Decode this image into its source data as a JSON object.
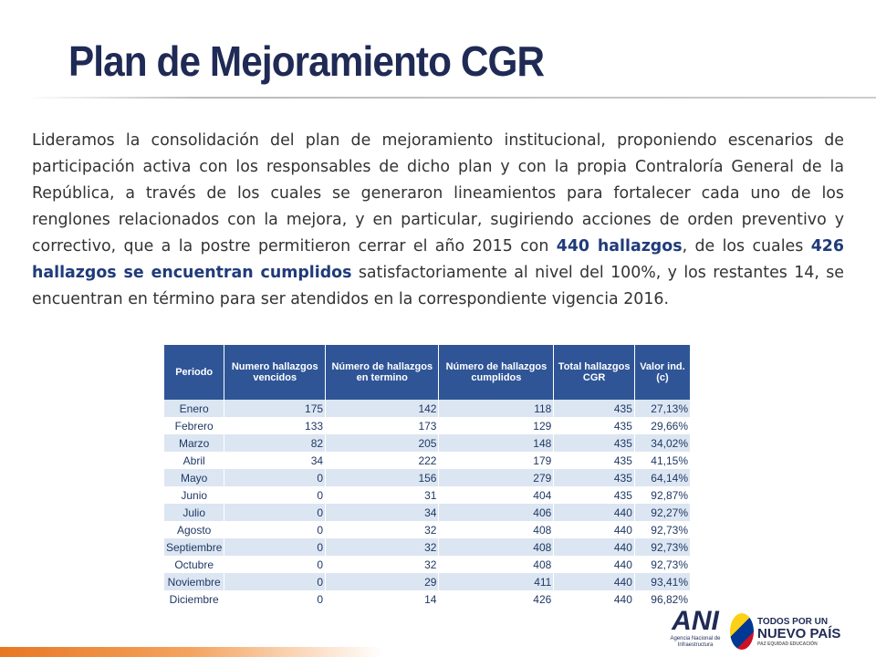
{
  "title": "Plan de Mejoramiento CGR",
  "paragraph": [
    "Lideramos la consolidación del plan de mejoramiento institucional, proponiendo escenarios de participación activa con los responsables de dicho plan y con la propia Contraloría General de la República, a través de los cuales se generaron lineamientos para fortalecer cada uno de los renglones relacionados con la mejora, y en particular, sugiriendo acciones de orden preventivo y correctivo, que a la postre permitieron cerrar el año 2015 con ",
    "440 hallazgos",
    ", de los cuales ",
    "426 hallazgos se encuentran cumplidos",
    " satisfactoriamente al nivel del 100%, y los restantes 14, se encuentran en término para ser atendidos en la correspondiente vigencia 2016."
  ],
  "table": {
    "headers": [
      "Periodo",
      "Numero hallazgos vencidos",
      "Número de hallazgos en termino",
      "Número de hallazgos cumplidos",
      "Total hallazgos CGR",
      "Valor ind. (c)"
    ],
    "rows": [
      [
        "Enero",
        "175",
        "142",
        "118",
        "435",
        "27,13%"
      ],
      [
        "Febrero",
        "133",
        "173",
        "129",
        "435",
        "29,66%"
      ],
      [
        "Marzo",
        "82",
        "205",
        "148",
        "435",
        "34,02%"
      ],
      [
        "Abril",
        "34",
        "222",
        "179",
        "435",
        "41,15%"
      ],
      [
        "Mayo",
        "0",
        "156",
        "279",
        "435",
        "64,14%"
      ],
      [
        "Junio",
        "0",
        "31",
        "404",
        "435",
        "92,87%"
      ],
      [
        "Julio",
        "0",
        "34",
        "406",
        "440",
        "92,27%"
      ],
      [
        "Agosto",
        "0",
        "32",
        "408",
        "440",
        "92,73%"
      ],
      [
        "Septiembre",
        "0",
        "32",
        "408",
        "440",
        "92,73%"
      ],
      [
        "Octubre",
        "0",
        "32",
        "408",
        "440",
        "92,73%"
      ],
      [
        "Noviembre",
        "0",
        "29",
        "411",
        "440",
        "93,41%"
      ],
      [
        "Diciembre",
        "0",
        "14",
        "426",
        "440",
        "96,82%"
      ]
    ]
  },
  "logos": {
    "ani_mark": "ANI",
    "ani_name": "Agencia Nacional de Infraestructura",
    "gov_line1": "TODOS POR UN",
    "gov_line2": "NUEVO PAÍS",
    "gov_line3": "PAZ  EQUIDAD  EDUCACIÓN"
  }
}
